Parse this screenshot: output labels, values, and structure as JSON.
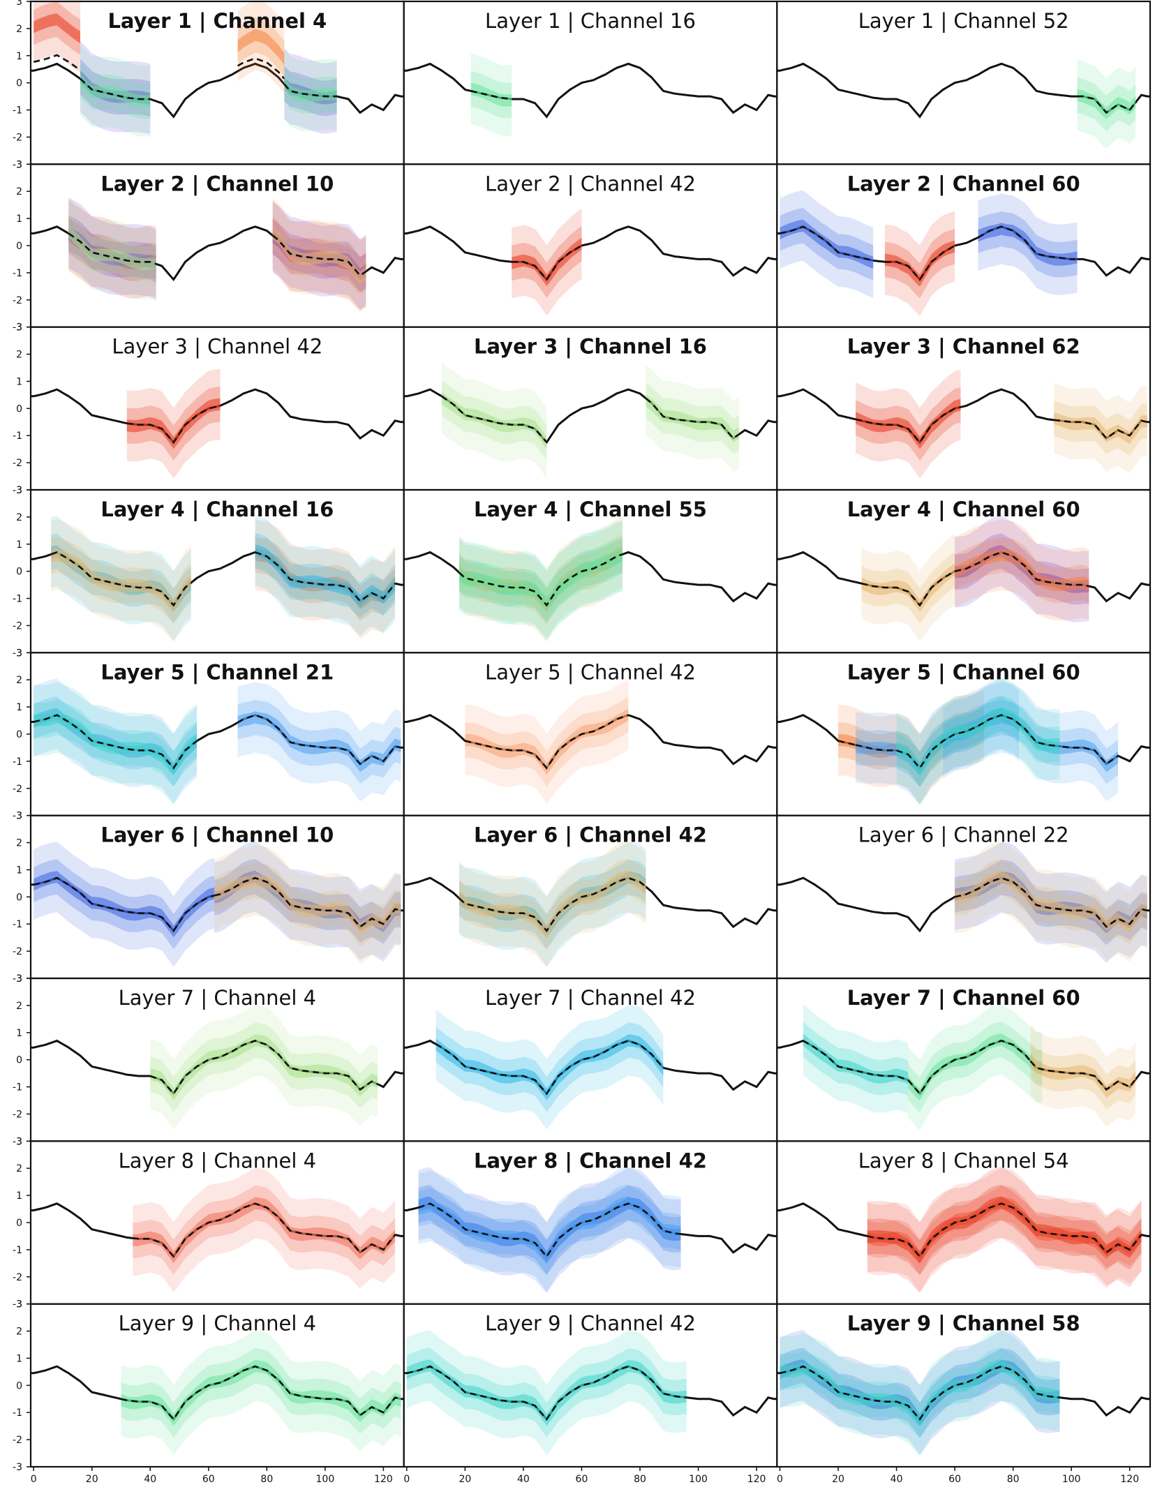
{
  "figure": {
    "x_ticks": [
      0,
      20,
      40,
      60,
      80,
      100,
      120
    ],
    "y_ticks": [
      -3,
      -2,
      -1,
      0,
      1,
      2,
      3
    ],
    "xlim": [
      -1,
      127
    ],
    "ylim": [
      -3,
      3
    ]
  },
  "chart_data": {
    "type": "line",
    "grid": false,
    "title": "",
    "xlabel": "",
    "ylabel": "",
    "series_note_colors": {
      "red": "#e8391d",
      "orange": "#f4813c",
      "salmon": "#f26b55",
      "peach": "#f7a070",
      "tan": "#e6b56b",
      "lime": "#a6e08a",
      "green": "#66e39a",
      "teal": "#3ad4c8",
      "cyan": "#2ab8e6",
      "sky": "#4a9ef0",
      "blue": "#3a63e0",
      "violet": "#6b3ae0"
    },
    "base_signal": {
      "x": [
        0,
        4,
        8,
        12,
        16,
        20,
        24,
        28,
        32,
        36,
        40,
        44,
        48,
        52,
        56,
        60,
        64,
        68,
        72,
        76,
        80,
        84,
        88,
        92,
        96,
        100,
        104,
        108,
        112,
        116,
        120,
        124,
        126
      ],
      "y": [
        0.45,
        0.55,
        0.7,
        0.45,
        0.15,
        -0.25,
        -0.35,
        -0.45,
        -0.55,
        -0.6,
        -0.6,
        -0.75,
        -1.25,
        -0.6,
        -0.25,
        0.0,
        0.1,
        0.3,
        0.55,
        0.7,
        0.55,
        0.2,
        -0.3,
        -0.4,
        -0.45,
        -0.5,
        -0.5,
        -0.6,
        -1.1,
        -0.8,
        -1.0,
        -0.45,
        -0.5
      ]
    },
    "panels": [
      {
        "title": "Layer 1 | Channel 4",
        "bold": true,
        "segments": [
          {
            "x": [
              0,
              16
            ],
            "color": "red",
            "offset": 1.6
          },
          {
            "x": [
              16,
              40
            ],
            "color": "violet"
          },
          {
            "x": [
              16,
              40
            ],
            "color": "green"
          },
          {
            "x": [
              70,
              86
            ],
            "color": "orange",
            "offset": 1.0
          },
          {
            "x": [
              86,
              104
            ],
            "color": "violet"
          },
          {
            "x": [
              86,
              104
            ],
            "color": "green"
          }
        ]
      },
      {
        "title": "Layer 1 | Channel 16",
        "bold": false,
        "segments": [
          {
            "x": [
              22,
              36
            ],
            "color": "green"
          }
        ]
      },
      {
        "title": "Layer 1 | Channel 52",
        "bold": false,
        "segments": [
          {
            "x": [
              102,
              122
            ],
            "color": "green"
          }
        ]
      },
      {
        "title": "Layer 2 | Channel 10",
        "bold": true,
        "segments": [
          {
            "x": [
              12,
              42
            ],
            "color": "red"
          },
          {
            "x": [
              12,
              42
            ],
            "color": "violet"
          },
          {
            "x": [
              12,
              42
            ],
            "color": "lime"
          },
          {
            "x": [
              82,
              114
            ],
            "color": "red"
          },
          {
            "x": [
              82,
              114
            ],
            "color": "violet"
          },
          {
            "x": [
              82,
              114
            ],
            "color": "tan"
          }
        ]
      },
      {
        "title": "Layer 2 | Channel 42",
        "bold": false,
        "segments": [
          {
            "x": [
              36,
              60
            ],
            "color": "red"
          }
        ]
      },
      {
        "title": "Layer 2 | Channel 60",
        "bold": true,
        "segments": [
          {
            "x": [
              0,
              32
            ],
            "color": "blue"
          },
          {
            "x": [
              36,
              60
            ],
            "color": "red"
          },
          {
            "x": [
              68,
              102
            ],
            "color": "blue"
          }
        ]
      },
      {
        "title": "Layer 3 | Channel 42",
        "bold": false,
        "segments": [
          {
            "x": [
              32,
              64
            ],
            "color": "red"
          }
        ]
      },
      {
        "title": "Layer 3 | Channel 16",
        "bold": true,
        "segments": [
          {
            "x": [
              12,
              48
            ],
            "color": "lime"
          },
          {
            "x": [
              82,
              114
            ],
            "color": "lime"
          }
        ]
      },
      {
        "title": "Layer 3 | Channel 62",
        "bold": true,
        "segments": [
          {
            "x": [
              26,
              62
            ],
            "color": "red"
          },
          {
            "x": [
              94,
              126
            ],
            "color": "tan"
          }
        ]
      },
      {
        "title": "Layer 4 | Channel 16",
        "bold": true,
        "segments": [
          {
            "x": [
              6,
              54
            ],
            "color": "cyan"
          },
          {
            "x": [
              6,
              54
            ],
            "color": "tan"
          },
          {
            "x": [
              76,
              124
            ],
            "color": "orange"
          },
          {
            "x": [
              76,
              124
            ],
            "color": "cyan"
          }
        ]
      },
      {
        "title": "Layer 4 | Channel 55",
        "bold": true,
        "segments": [
          {
            "x": [
              18,
              74
            ],
            "color": "teal"
          },
          {
            "x": [
              18,
              74
            ],
            "color": "tan"
          },
          {
            "x": [
              18,
              74
            ],
            "color": "green"
          }
        ]
      },
      {
        "title": "Layer 4 | Channel 60",
        "bold": true,
        "segments": [
          {
            "x": [
              28,
              60
            ],
            "color": "tan"
          },
          {
            "x": [
              60,
              106
            ],
            "color": "violet"
          },
          {
            "x": [
              60,
              106
            ],
            "color": "orange"
          }
        ]
      },
      {
        "title": "Layer 5 | Channel 21",
        "bold": true,
        "segments": [
          {
            "x": [
              0,
              56
            ],
            "color": "sky"
          },
          {
            "x": [
              0,
              56
            ],
            "color": "teal"
          },
          {
            "x": [
              70,
              126
            ],
            "color": "sky"
          }
        ]
      },
      {
        "title": "Layer 5 | Channel 42",
        "bold": false,
        "segments": [
          {
            "x": [
              20,
              76
            ],
            "color": "peach"
          }
        ]
      },
      {
        "title": "Layer 5 | Channel 60",
        "bold": true,
        "segments": [
          {
            "x": [
              20,
              70
            ],
            "color": "orange"
          },
          {
            "x": [
              26,
              82
            ],
            "color": "sky"
          },
          {
            "x": [
              56,
              116
            ],
            "color": "sky"
          },
          {
            "x": [
              40,
              96
            ],
            "color": "teal"
          }
        ]
      },
      {
        "title": "Layer 6 | Channel 10",
        "bold": true,
        "segments": [
          {
            "x": [
              0,
              62
            ],
            "color": "blue"
          },
          {
            "x": [
              62,
              126
            ],
            "color": "blue"
          },
          {
            "x": [
              62,
              126
            ],
            "color": "tan"
          }
        ]
      },
      {
        "title": "Layer 6 | Channel 42",
        "bold": true,
        "segments": [
          {
            "x": [
              18,
              82
            ],
            "color": "cyan"
          },
          {
            "x": [
              18,
              82
            ],
            "color": "tan"
          }
        ]
      },
      {
        "title": "Layer 6 | Channel 22",
        "bold": false,
        "segments": [
          {
            "x": [
              60,
              126
            ],
            "color": "blue"
          },
          {
            "x": [
              60,
              126
            ],
            "color": "tan"
          }
        ]
      },
      {
        "title": "Layer 7 | Channel 4",
        "bold": false,
        "segments": [
          {
            "x": [
              40,
              118
            ],
            "color": "lime"
          }
        ]
      },
      {
        "title": "Layer 7 | Channel 42",
        "bold": false,
        "segments": [
          {
            "x": [
              10,
              88
            ],
            "color": "cyan"
          }
        ]
      },
      {
        "title": "Layer 7 | Channel 60",
        "bold": true,
        "segments": [
          {
            "x": [
              8,
              44
            ],
            "color": "teal"
          },
          {
            "x": [
              44,
              90
            ],
            "color": "green"
          },
          {
            "x": [
              86,
              122
            ],
            "color": "tan"
          }
        ]
      },
      {
        "title": "Layer 8 | Channel 4",
        "bold": false,
        "segments": [
          {
            "x": [
              34,
              124
            ],
            "color": "salmon"
          }
        ]
      },
      {
        "title": "Layer 8 | Channel 42",
        "bold": true,
        "segments": [
          {
            "x": [
              4,
              94
            ],
            "color": "blue"
          },
          {
            "x": [
              4,
              94
            ],
            "color": "sky"
          }
        ]
      },
      {
        "title": "Layer 8 | Channel 54",
        "bold": false,
        "segments": [
          {
            "x": [
              30,
              124
            ],
            "color": "salmon"
          },
          {
            "x": [
              30,
              124
            ],
            "color": "red"
          }
        ]
      },
      {
        "title": "Layer 9 | Channel 4",
        "bold": false,
        "segments": [
          {
            "x": [
              30,
              126
            ],
            "color": "green"
          }
        ]
      },
      {
        "title": "Layer 9 | Channel 42",
        "bold": false,
        "segments": [
          {
            "x": [
              0,
              96
            ],
            "color": "teal"
          }
        ]
      },
      {
        "title": "Layer 9 | Channel 58",
        "bold": true,
        "segments": [
          {
            "x": [
              0,
              96
            ],
            "color": "blue"
          },
          {
            "x": [
              0,
              96
            ],
            "color": "teal"
          }
        ]
      }
    ]
  }
}
